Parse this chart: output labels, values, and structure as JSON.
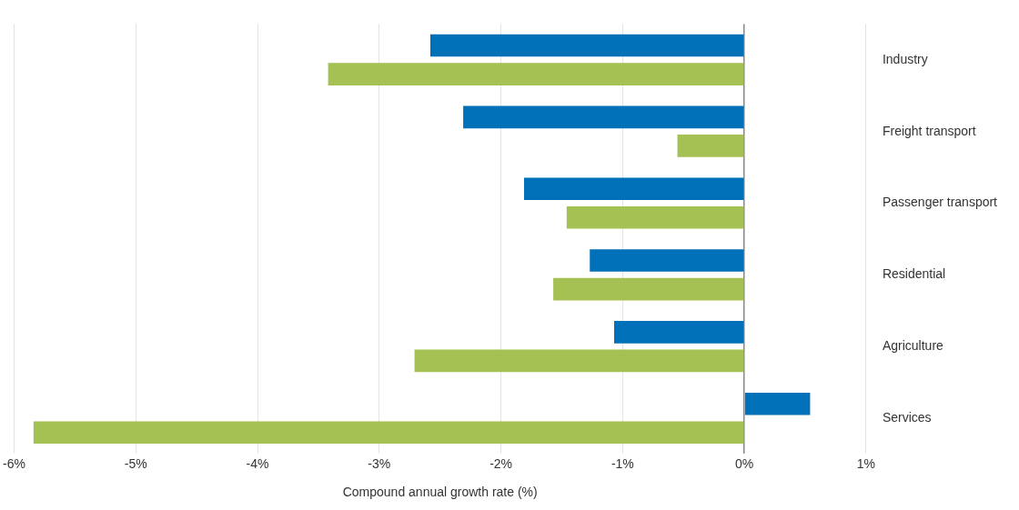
{
  "chart_data": {
    "type": "bar",
    "orientation": "horizontal",
    "xlabel": "Compound annual growth rate (%)",
    "categories": [
      "Industry",
      "Freight transport",
      "Passenger transport",
      "Residential",
      "Agriculture",
      "Services"
    ],
    "series": [
      {
        "color": "#0070b8",
        "values": [
          -2.58,
          -2.31,
          -1.81,
          -1.27,
          -1.07,
          0.54
        ]
      },
      {
        "color": "#a5c153",
        "values": [
          -3.42,
          -0.55,
          -1.46,
          -1.57,
          -2.71,
          -5.84
        ]
      }
    ],
    "xlim": [
      -6,
      1
    ],
    "xticks": [
      {
        "value": -6,
        "label": "-6%"
      },
      {
        "value": -5,
        "label": "-5%"
      },
      {
        "value": -4,
        "label": "-4%"
      },
      {
        "value": -3,
        "label": "-3%"
      },
      {
        "value": -2,
        "label": "-2%"
      },
      {
        "value": -1,
        "label": "-1%"
      },
      {
        "value": 0,
        "label": "0%"
      },
      {
        "value": 1,
        "label": "1%"
      }
    ],
    "grid": "x",
    "legend": false
  }
}
